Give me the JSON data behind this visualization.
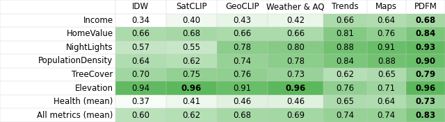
{
  "columns": [
    "IDW",
    "SatCLIP",
    "GeoCLIP",
    "Weather & AQ",
    "Trends",
    "Maps",
    "PDFM"
  ],
  "rows": [
    "Income",
    "HomeValue",
    "NightLights",
    "PopulationDensity",
    "TreeCover",
    "Elevation",
    "Health (mean)",
    "All metrics (mean)"
  ],
  "values": [
    [
      0.34,
      0.4,
      0.43,
      0.42,
      0.66,
      0.64,
      0.68
    ],
    [
      0.66,
      0.68,
      0.66,
      0.66,
      0.81,
      0.76,
      0.84
    ],
    [
      0.57,
      0.55,
      0.78,
      0.8,
      0.88,
      0.91,
      0.93
    ],
    [
      0.64,
      0.62,
      0.74,
      0.78,
      0.84,
      0.88,
      0.9
    ],
    [
      0.7,
      0.75,
      0.76,
      0.73,
      0.62,
      0.65,
      0.79
    ],
    [
      0.94,
      0.96,
      0.91,
      0.96,
      0.76,
      0.71,
      0.96
    ],
    [
      0.37,
      0.41,
      0.46,
      0.46,
      0.65,
      0.64,
      0.73
    ],
    [
      0.6,
      0.62,
      0.68,
      0.69,
      0.74,
      0.74,
      0.83
    ]
  ],
  "bold_cells": [
    [
      6
    ],
    [
      6
    ],
    [
      6
    ],
    [
      6
    ],
    [
      6
    ],
    [
      1,
      3,
      6
    ],
    [
      6
    ],
    [
      6
    ]
  ],
  "background_color": "#ffffff",
  "color_min": "#ffffff",
  "color_max": "#5cb85c",
  "global_min": 0.34,
  "global_max": 0.96,
  "font_size": 8.5,
  "header_font_size": 8.5,
  "line_color": "#cccccc"
}
